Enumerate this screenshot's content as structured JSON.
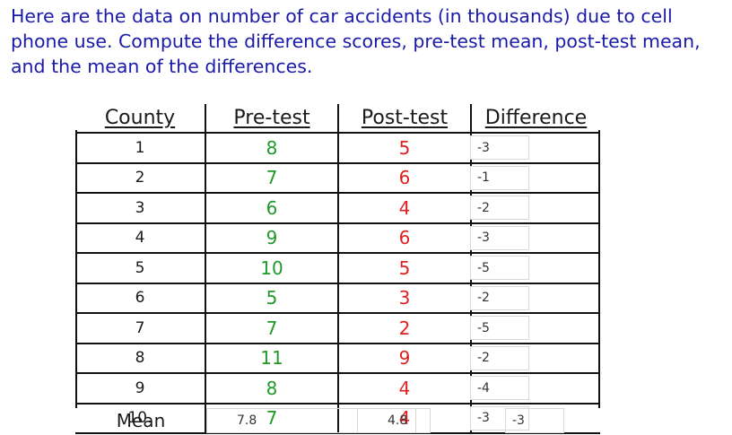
{
  "prompt": {
    "line1": "Here are the data on number of car accidents (in thousands) due to cell",
    "line2": "phone use. Compute the difference scores, pre-test mean, post-test mean,",
    "line3": "and the mean of the differences."
  },
  "table": {
    "headers": [
      "County",
      "Pre-test",
      "Post-test",
      "Difference"
    ],
    "rows": [
      {
        "county": "1",
        "pre": "8",
        "post": "5",
        "diff": "-3"
      },
      {
        "county": "2",
        "pre": "7",
        "post": "6",
        "diff": "-1"
      },
      {
        "county": "3",
        "pre": "6",
        "post": "4",
        "diff": "-2"
      },
      {
        "county": "4",
        "pre": "9",
        "post": "6",
        "diff": "-3"
      },
      {
        "county": "5",
        "pre": "10",
        "post": "5",
        "diff": "-5"
      },
      {
        "county": "6",
        "pre": "5",
        "post": "3",
        "diff": "-2"
      },
      {
        "county": "7",
        "pre": "7",
        "post": "2",
        "diff": "-5"
      },
      {
        "county": "8",
        "pre": "11",
        "post": "9",
        "diff": "-2"
      },
      {
        "county": "9",
        "pre": "8",
        "post": "4",
        "diff": "-4"
      },
      {
        "county": "10.",
        "pre": "7",
        "post": "4",
        "diff": "-3"
      }
    ],
    "mean_label": "Mean",
    "mean_pre": "7.8",
    "mean_post": "4.8",
    "mean_diff": "-3"
  },
  "colors": {
    "prompt_text": "#1a1aa8",
    "pre_values": "#1f9a2a",
    "post_values": "#e02020"
  }
}
